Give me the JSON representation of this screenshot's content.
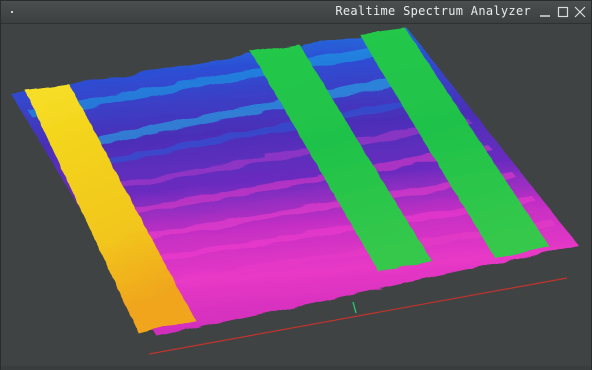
{
  "window": {
    "title": "Realtime Spectrum Analyzer",
    "controls": [
      "minimize-icon",
      "maximize-icon",
      "close-icon"
    ],
    "system_menu_icon": "dot-icon"
  },
  "plot": {
    "type": "3d-spectrogram-surface",
    "colors": {
      "background": "#3f4344",
      "blue": "#2a5bd9",
      "cyan": "#22b8e8",
      "purple": "#5a2fb0",
      "magenta": "#e636c8",
      "yellow": "#f4d21c",
      "orange": "#f0a818",
      "green": "#1ec247",
      "axis_red": "#c0342c",
      "marker_green": "#26d06a"
    }
  }
}
